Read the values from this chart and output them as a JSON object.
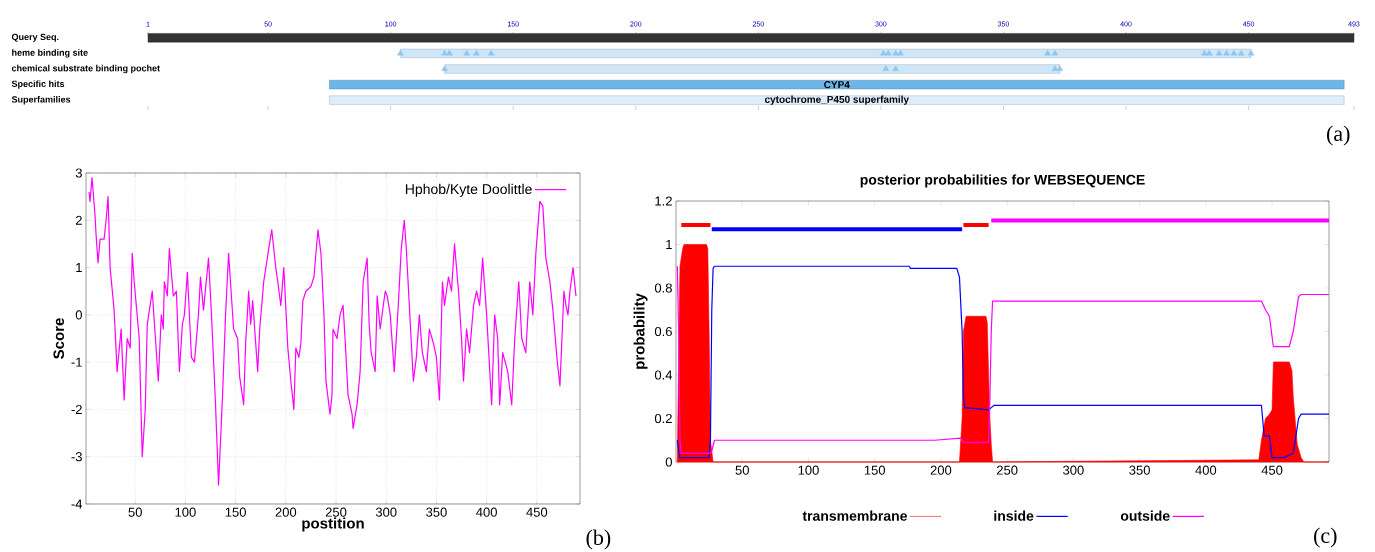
{
  "chart_data": [
    {
      "type": "bar",
      "orientation": "horizontal",
      "categories": [
        "Query Seq.",
        "heme binding site",
        "chemical substrate binding pochet",
        "Specific hits",
        "Superfamilies"
      ],
      "xlim": [
        1,
        493
      ],
      "xticks": [
        1,
        50,
        100,
        150,
        200,
        250,
        300,
        350,
        400,
        450,
        493
      ],
      "series": [
        {
          "values": [
            492,
            347,
            251,
            414,
            414
          ],
          "base": [
            1,
            104,
            122,
            75,
            75
          ],
          "colors": [
            "#333333",
            "#cfe6f8",
            "#cfe6f8",
            "#6cb6e8",
            "#deedfb"
          ],
          "value_labels": [
            null,
            null,
            null,
            "CYP4",
            "cytochrome_P450 superfamily"
          ]
        },
        {
          "type": "scatter",
          "marker": "triangle",
          "color": "#8ec8ee",
          "x": [
            "heme binding site",
            "heme binding site",
            "heme binding site",
            "heme binding site",
            "heme binding site",
            "heme binding site",
            "heme binding site",
            "heme binding site",
            "heme binding site",
            "heme binding site",
            "heme binding site",
            "heme binding site",
            "heme binding site",
            "heme binding site",
            "heme binding site",
            "heme binding site",
            "heme binding site",
            "heme binding site",
            "heme binding site"
          ],
          "values": [
            104,
            122,
            124,
            131,
            135,
            141,
            301,
            303,
            306,
            308,
            368,
            371,
            432,
            434,
            438,
            441,
            444,
            447,
            451
          ]
        },
        {
          "type": "scatter",
          "marker": "triangle",
          "color": "#8ec8ee",
          "x": [
            "chemical substrate binding pochet",
            "chemical substrate binding pochet",
            "chemical substrate binding pochet",
            "chemical substrate binding pochet",
            "chemical substrate binding pochet"
          ],
          "values": [
            122,
            302,
            306,
            371,
            373
          ]
        }
      ],
      "annotations": [
        "(a)"
      ]
    },
    {
      "type": "line",
      "xlabel": "postition",
      "ylabel": "Score",
      "xlim": [
        1,
        493
      ],
      "ylim": [
        -4,
        3
      ],
      "xticks": [
        50,
        100,
        150,
        200,
        250,
        300,
        350,
        400,
        450
      ],
      "yticks": [
        -4,
        -3,
        -2,
        -1,
        0,
        1,
        2,
        3
      ],
      "grid": true,
      "legend": "top right",
      "series": [
        {
          "name": "Hphob/Kyte Doolittle",
          "color": "#ff00ff",
          "x": [
            4,
            5,
            7,
            10,
            11,
            13,
            15,
            19,
            21,
            23,
            25,
            29,
            32,
            36,
            39,
            42,
            45,
            47,
            49,
            54,
            57,
            60,
            62,
            67,
            73,
            76,
            78,
            79,
            82,
            84,
            88,
            91,
            94,
            97,
            99,
            102,
            106,
            109,
            113,
            115,
            118,
            123,
            126,
            130,
            133,
            137,
            140,
            143,
            148,
            152,
            154,
            158,
            160,
            163,
            165,
            167,
            172,
            174,
            178,
            183,
            186,
            190,
            192,
            195,
            198,
            202,
            205,
            208,
            210,
            213,
            215,
            217,
            220,
            225,
            228,
            232,
            235,
            238,
            240,
            244,
            246,
            247,
            251,
            254,
            257,
            259,
            262,
            266,
            267,
            271,
            274,
            277,
            281,
            283,
            285,
            289,
            291,
            294,
            299,
            301,
            304,
            308,
            312,
            315,
            318,
            320,
            324,
            327,
            330,
            333,
            336,
            340,
            343,
            347,
            350,
            353,
            356,
            358,
            362,
            365,
            368,
            372,
            375,
            377,
            380,
            383,
            387,
            390,
            393,
            396,
            400,
            405,
            408,
            411,
            413,
            416,
            421,
            425,
            428,
            432,
            435,
            439,
            443,
            446,
            449,
            453,
            456,
            459,
            463,
            466,
            470,
            473,
            477,
            479,
            481,
            483,
            486,
            489
          ],
          "values": [
            2.6,
            2.4,
            2.9,
            2.1,
            1.7,
            1.1,
            1.6,
            1.6,
            2.0,
            2.5,
            1.0,
            0.1,
            -1.2,
            -0.3,
            -1.8,
            -0.5,
            -0.7,
            1.3,
            0.7,
            -0.5,
            -3.0,
            -2.0,
            -0.2,
            0.5,
            -1.4,
            0.0,
            -0.3,
            0.7,
            0.4,
            1.4,
            0.4,
            0.5,
            -1.2,
            -0.2,
            0.0,
            0.9,
            -0.9,
            -1.0,
            0.0,
            0.8,
            0.1,
            1.2,
            0.0,
            -1.9,
            -3.6,
            -1.7,
            0.0,
            1.3,
            -0.3,
            -0.5,
            -1.3,
            -1.9,
            -0.6,
            0.5,
            -0.2,
            0.3,
            -1.2,
            -0.3,
            0.7,
            1.4,
            1.8,
            1.0,
            0.7,
            0.2,
            1.0,
            -0.7,
            -1.4,
            -2.0,
            -0.7,
            -0.9,
            -0.6,
            0.3,
            0.5,
            0.6,
            0.8,
            1.8,
            1.3,
            0.0,
            -1.4,
            -2.1,
            -1.7,
            -0.3,
            -0.5,
            0.0,
            0.2,
            -0.5,
            -1.7,
            -2.1,
            -2.4,
            -1.9,
            -1.2,
            0.7,
            1.2,
            -0.2,
            -0.8,
            -1.2,
            0.4,
            -0.3,
            0.5,
            0.4,
            0.0,
            -1.2,
            0.2,
            1.4,
            2.0,
            1.4,
            -0.2,
            -1.4,
            -0.9,
            0.0,
            -0.8,
            -1.2,
            -0.3,
            -0.6,
            -0.9,
            -1.8,
            0.7,
            0.2,
            0.8,
            0.5,
            1.5,
            0.5,
            -0.5,
            -1.4,
            -0.3,
            -0.8,
            0.2,
            0.5,
            0.2,
            1.2,
            0.0,
            -1.9,
            0.0,
            -0.5,
            -1.9,
            -0.8,
            -1.2,
            -1.9,
            -0.5,
            0.7,
            -0.5,
            -0.8,
            0.7,
            0.0,
            1.3,
            2.4,
            2.3,
            1.2,
            0.7,
            0.1,
            -0.9,
            -1.5,
            0.5,
            0.2,
            0.0,
            0.5,
            1.0,
            0.4
          ]
        }
      ],
      "annotations": [
        "(b)"
      ]
    },
    {
      "type": "line",
      "title": "posterior probabilities for WEBSEQUENCE",
      "ylabel": "probability",
      "xlim": [
        0,
        493
      ],
      "ylim": [
        0,
        1.2
      ],
      "xticks": [
        50,
        100,
        150,
        200,
        250,
        300,
        350,
        400,
        450
      ],
      "yticks": [
        0,
        0.2,
        0.4,
        0.6,
        0.8,
        1,
        1.2
      ],
      "legend": "bottom",
      "series": [
        {
          "name": "transmembrane",
          "type": "area",
          "color": "#ff0000",
          "x": [
            1,
            2,
            3,
            5,
            6,
            23,
            24,
            25,
            26,
            27,
            28,
            214,
            216,
            217,
            219,
            234,
            235,
            236,
            237,
            238,
            239,
            440,
            442,
            445,
            448,
            450,
            451,
            463,
            465,
            466,
            469,
            472,
            474,
            493
          ],
          "values": [
            0,
            0.5,
            0.9,
            0.98,
            1.0,
            1.0,
            0.98,
            0.6,
            0.1,
            0.05,
            0,
            0,
            0.2,
            0.6,
            0.67,
            0.67,
            0.64,
            0.4,
            0.2,
            0.08,
            0,
            0.01,
            0.1,
            0.2,
            0.22,
            0.24,
            0.46,
            0.46,
            0.42,
            0.3,
            0.08,
            0.02,
            0,
            0
          ]
        },
        {
          "name": "inside",
          "color": "#0000ff",
          "x": [
            1,
            2,
            3,
            25,
            26,
            27,
            28,
            29,
            176,
            177,
            212,
            214,
            216,
            217,
            218,
            236,
            238,
            240,
            442,
            444,
            448,
            450,
            459,
            466,
            470,
            472,
            493
          ],
          "values": [
            0.1,
            0.05,
            0.02,
            0.02,
            0.1,
            0.7,
            0.89,
            0.9,
            0.9,
            0.89,
            0.89,
            0.85,
            0.6,
            0.3,
            0.25,
            0.24,
            0.25,
            0.26,
            0.26,
            0.12,
            0.12,
            0.02,
            0.02,
            0.04,
            0.2,
            0.22,
            0.22
          ]
        },
        {
          "name": "outside",
          "color": "#ff00ff",
          "x": [
            1,
            2,
            3,
            4,
            26,
            27,
            29,
            195,
            215,
            216,
            217,
            236,
            237,
            238,
            239,
            442,
            445,
            448,
            451,
            463,
            466,
            470,
            472,
            493
          ],
          "values": [
            0.9,
            0.6,
            0.1,
            0.04,
            0.04,
            0.05,
            0.1,
            0.1,
            0.11,
            0.1,
            0.09,
            0.09,
            0.3,
            0.6,
            0.74,
            0.74,
            0.7,
            0.67,
            0.53,
            0.53,
            0.6,
            0.76,
            0.77,
            0.77
          ]
        },
        {
          "color": "#ff00ff",
          "x": [
            238,
            493
          ],
          "values": [
            1.11,
            1.11
          ]
        },
        {
          "color": "#ff0000",
          "x": [
            4,
            26,
            100,
            217,
            236
          ],
          "values": [
            1.09,
            1.09,
            null,
            1.09,
            1.09
          ]
        },
        {
          "color": "#0000ff",
          "x": [
            27,
            216
          ],
          "values": [
            1.07,
            1.07
          ]
        }
      ],
      "annotations": [
        "(c)"
      ]
    }
  ]
}
